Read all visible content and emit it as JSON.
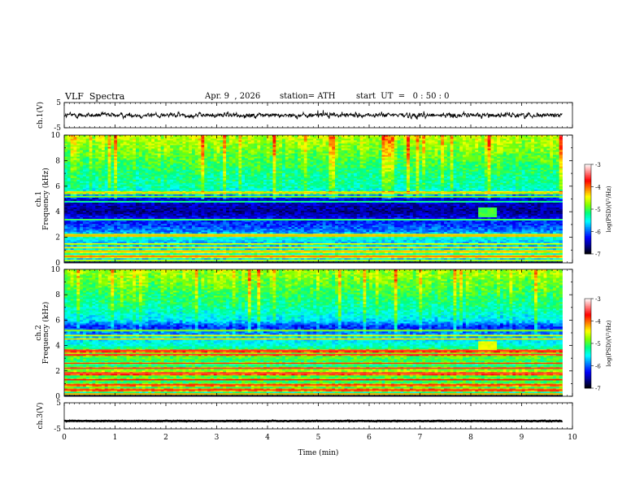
{
  "header": {
    "title": "VLF  Spectra",
    "date": "Apr. 9  , 2026",
    "station": "station= ATH",
    "start": "start  UT  =   0 : 50 : 0"
  },
  "colors": {
    "trace": "#000000",
    "colormap": [
      "#000000",
      "#00008c",
      "#0000ff",
      "#0080ff",
      "#00ffff",
      "#00ff80",
      "#80ff00",
      "#ffff00",
      "#ff8000",
      "#ff0000",
      "#ff8080",
      "#ffffff"
    ]
  },
  "chart_data": [
    {
      "type": "line",
      "name": "ch1-waveform",
      "ylabel": "ch.1(V)",
      "ylim": [
        -5,
        5
      ],
      "yticks": [
        "5",
        "-5"
      ],
      "xlim": [
        0,
        10
      ],
      "description_values": {
        "mean": 0,
        "noise_amplitude": 1.2,
        "end_time_min": 9.8
      }
    },
    {
      "type": "heatmap",
      "name": "ch1-spectrogram",
      "channel": "ch.1",
      "ylabel": "Frequency  (kHz)",
      "ylim": [
        0,
        10
      ],
      "yticks": [
        "0",
        "2",
        "4",
        "6",
        "8",
        "10"
      ],
      "xlim": [
        0,
        10
      ],
      "end_time_min": 9.8,
      "colorbar": {
        "label": "log(PSD)(V²/Hz)",
        "range": [
          -7,
          -3
        ],
        "ticks": [
          "-3",
          "-4",
          "-5",
          "-6",
          "-7"
        ]
      },
      "profile_kHz_logPSD": [
        [
          0,
          -6.2
        ],
        [
          0.5,
          -5.3
        ],
        [
          1,
          -5.6
        ],
        [
          1.5,
          -5.8
        ],
        [
          2,
          -5.4
        ],
        [
          2.5,
          -5.9
        ],
        [
          3,
          -6.1
        ],
        [
          3.5,
          -6.3
        ],
        [
          4,
          -6.6
        ],
        [
          4.5,
          -6.5
        ],
        [
          5,
          -6.4
        ],
        [
          5.5,
          -5.6
        ],
        [
          6,
          -5.3
        ],
        [
          7,
          -5.2
        ],
        [
          8,
          -5.0
        ],
        [
          9,
          -4.8
        ],
        [
          10,
          -4.6
        ]
      ],
      "lines_kHz": [
        0.2,
        0.5,
        0.9,
        1.2,
        1.5,
        2.1,
        2.2,
        3.4,
        4.8,
        5.2,
        5.5
      ],
      "features": [
        {
          "t_min": 8.3,
          "f_kHz": 4.0,
          "logPSD": -5.0,
          "label": "transmitter burst"
        }
      ]
    },
    {
      "type": "heatmap",
      "name": "ch2-spectrogram",
      "channel": "ch.2",
      "ylabel": "Frequency  (kHz)",
      "ylim": [
        0,
        10
      ],
      "yticks": [
        "0",
        "2",
        "4",
        "6",
        "8",
        "10"
      ],
      "xlim": [
        0,
        10
      ],
      "end_time_min": 9.8,
      "colorbar": {
        "label": "log(PSD)(V²/Hz)",
        "range": [
          -7,
          -3
        ],
        "ticks": [
          "-3",
          "-4",
          "-5",
          "-6",
          "-7"
        ]
      },
      "profile_kHz_logPSD": [
        [
          0,
          -5.8
        ],
        [
          0.5,
          -5.0
        ],
        [
          1,
          -5.1
        ],
        [
          1.5,
          -5.0
        ],
        [
          2,
          -4.7
        ],
        [
          2.5,
          -5.2
        ],
        [
          3,
          -5.0
        ],
        [
          3.5,
          -4.8
        ],
        [
          4,
          -5.4
        ],
        [
          4.5,
          -5.6
        ],
        [
          5,
          -5.9
        ],
        [
          5.5,
          -6.2
        ],
        [
          6,
          -5.6
        ],
        [
          7,
          -5.3
        ],
        [
          8,
          -5.1
        ],
        [
          9,
          -4.9
        ],
        [
          10,
          -4.7
        ]
      ],
      "lines_kHz": [
        0.2,
        0.5,
        0.9,
        1.3,
        1.8,
        2.2,
        2.6,
        3.3,
        3.6,
        4.5,
        4.8,
        5.2
      ],
      "features": [
        {
          "t_min": 8.3,
          "f_kHz": 4.0,
          "logPSD": -4.5,
          "label": "transmitter burst"
        }
      ]
    },
    {
      "type": "line",
      "name": "ch3-waveform",
      "ylabel": "ch.3(V)",
      "ylim": [
        -5,
        5
      ],
      "yticks": [
        "5",
        "-5"
      ],
      "xlim": [
        0,
        10
      ],
      "description_values": {
        "mean": -2.0,
        "noise_amplitude": 0.15,
        "end_time_min": 9.8
      }
    }
  ],
  "time_axis": {
    "label": "Time  (min)",
    "ticks": [
      "0",
      "1",
      "2",
      "3",
      "4",
      "5",
      "6",
      "7",
      "8",
      "9",
      "10"
    ]
  }
}
